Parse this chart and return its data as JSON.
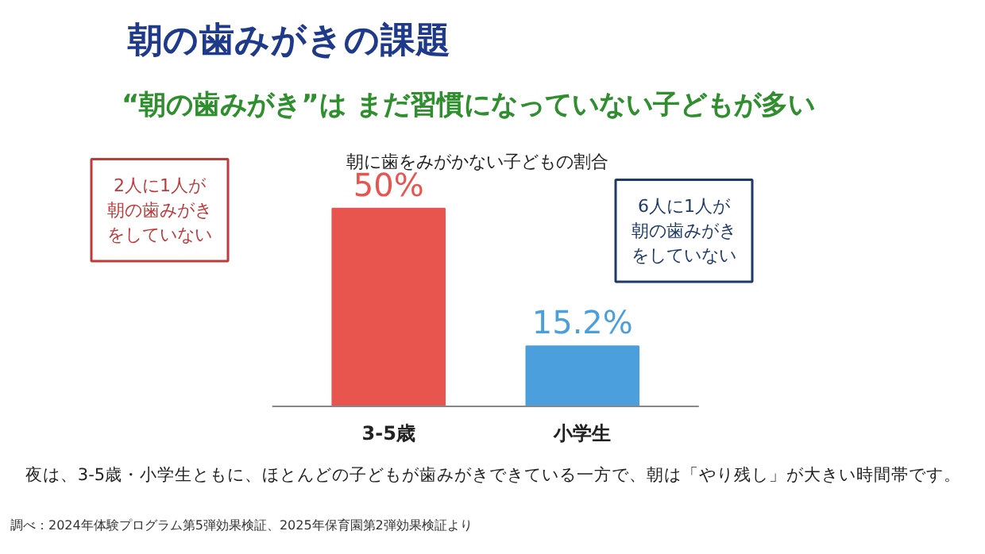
{
  "chart_data": {
    "type": "bar",
    "title": "朝の歯みがきの課題",
    "subtitle": "“朝の歯みがき”は まだ習慣になっていない子どもが多い",
    "xlabel": "朝に歯をみがかない子どもの割合",
    "categories": [
      "3-5歳",
      "小学生"
    ],
    "values": [
      50,
      15.2
    ],
    "colors": [
      "#e8554e",
      "#4a9fdc"
    ],
    "value_labels": [
      "50%",
      "15.2%"
    ],
    "annotations": [
      "2人に1人が朝の歯みがきをしていない",
      "6人に1人が朝の歯みがきをしていない",
      "夜は、3-5歳・小学生ともに、ほとんどの子どもが歯みがきできている一方で、朝は「やり残し」が大きい時間帯です。",
      "調べ：2024年体験プログラム第5弾効果検証、2025年保育園第2弾効果検証より"
    ],
    "grid": false
  }
}
